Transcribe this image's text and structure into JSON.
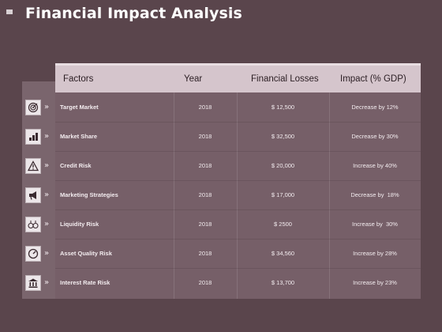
{
  "page_title": "Financial Impact Analysis",
  "table": {
    "headers": [
      "Factors",
      "Year",
      "Financial Losses",
      "Impact (% GDP)"
    ],
    "rows": [
      {
        "factor": "Target Market",
        "year": "2018",
        "losses": "$ 12,500",
        "impact": "Decrease by 12%",
        "icon": "target-icon"
      },
      {
        "factor": "Market Share",
        "year": "2018",
        "losses": "$ 32,500",
        "impact": "Decrease by 30%",
        "icon": "market-share-icon"
      },
      {
        "factor": "Credit Risk",
        "year": "2018",
        "losses": "$ 20,000",
        "impact": "Increase by 40%",
        "icon": "warning-icon"
      },
      {
        "factor": "Marketing Strategies",
        "year": "2018",
        "losses": "$ 17,000",
        "impact": "Decrease by  18%",
        "icon": "megaphone-icon"
      },
      {
        "factor": "Liquidity Risk",
        "year": "2018",
        "losses": "$ 2500",
        "impact": "Increase by  30%",
        "icon": "money-bags-icon"
      },
      {
        "factor": "Asset Quality Risk",
        "year": "2018",
        "losses": "$ 34,560",
        "impact": "Increase by 28%",
        "icon": "gauge-icon"
      },
      {
        "factor": "Interest Rate Risk",
        "year": "2018",
        "losses": "$ 13,700",
        "impact": "Increase by 23%",
        "icon": "bank-icon"
      }
    ]
  },
  "colors": {
    "background": "#5a454c",
    "header": "#d5c5cc",
    "body": "#765f68",
    "icon_column": "#7a656d"
  },
  "chevron": "»"
}
